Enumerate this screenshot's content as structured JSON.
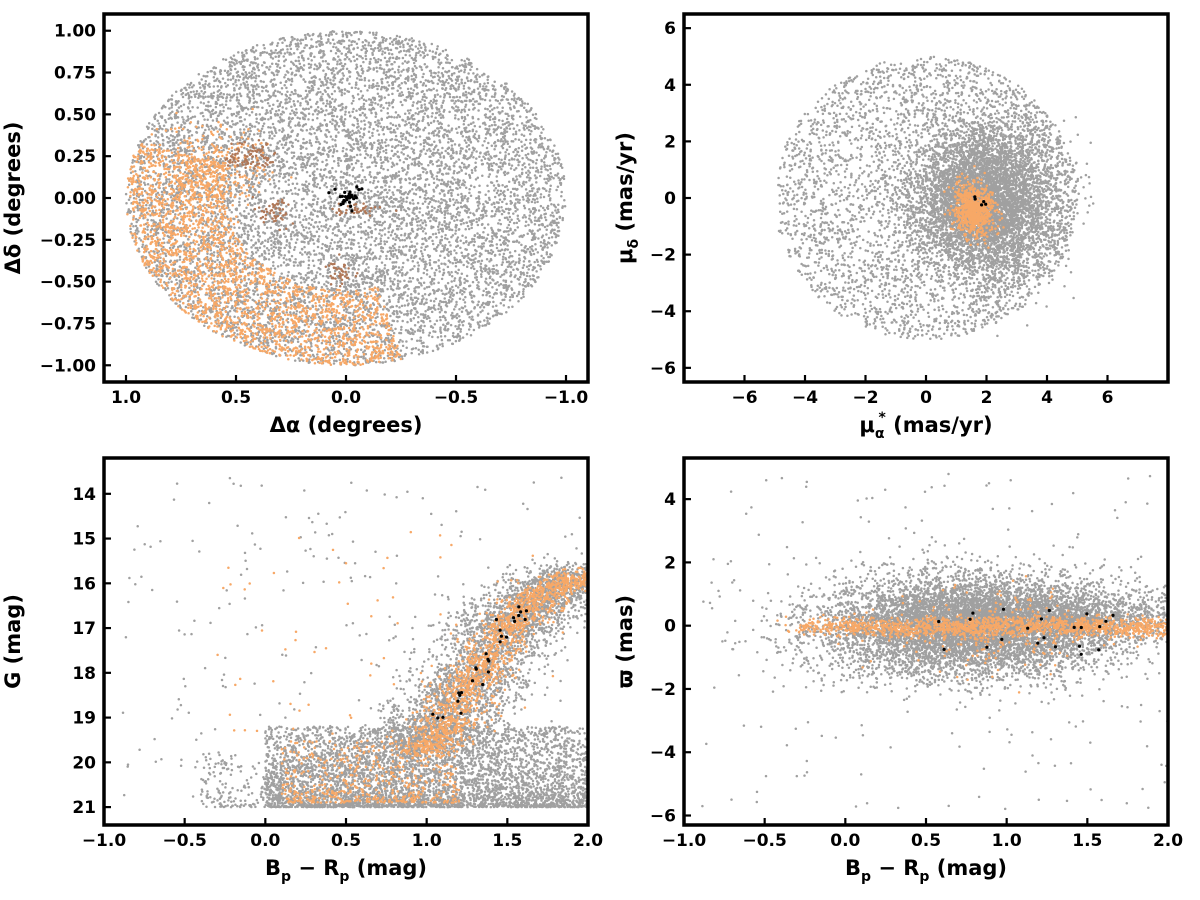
{
  "colors": {
    "field": "#a0a0a0",
    "members": "#f7a867",
    "highlight": "#000000",
    "members_dark": "#b07858"
  },
  "chart_data": [
    {
      "id": "sky",
      "type": "scatter",
      "xlabel": {
        "main": "Δα (degrees)",
        "sub": ""
      },
      "ylabel": {
        "main": "Δδ (degrees)",
        "sub": ""
      },
      "xlim": [
        1.1,
        -1.1
      ],
      "ylim": [
        -1.1,
        1.1
      ],
      "x_reversed": true,
      "xticks": [
        1.0,
        0.5,
        0.0,
        -0.5,
        -1.0
      ],
      "xtick_labels": [
        "1.0",
        "0.5",
        "0.0",
        "−0.5",
        "−1.0"
      ],
      "yticks": [
        -1.0,
        -0.75,
        -0.5,
        -0.25,
        0.0,
        0.25,
        0.5,
        0.75,
        1.0
      ],
      "ytick_labels": [
        "−1.00",
        "−0.75",
        "−0.50",
        "−0.25",
        "0.00",
        "0.25",
        "0.50",
        "0.75",
        "1.00"
      ],
      "grid": false,
      "series": [
        {
          "role": "field",
          "shape": "disk",
          "center": [
            0.0,
            0.0
          ],
          "radius": [
            1.0,
            1.0
          ],
          "n": 9000
        },
        {
          "role": "members",
          "shape": "arc",
          "center": [
            0.0,
            0.0
          ],
          "r_range": [
            0.55,
            1.0
          ],
          "theta_deg": [
            160,
            285
          ],
          "n": 2200
        },
        {
          "role": "members",
          "shape": "blob",
          "center": [
            0.6,
            0.15
          ],
          "spread": [
            0.12,
            0.15
          ],
          "n": 300
        },
        {
          "role": "members_dark",
          "shape": "blob",
          "center": [
            0.45,
            0.25
          ],
          "spread": [
            0.06,
            0.05
          ],
          "n": 90
        },
        {
          "role": "members_dark",
          "shape": "blob",
          "center": [
            0.33,
            -0.08
          ],
          "spread": [
            0.04,
            0.04
          ],
          "n": 50
        },
        {
          "role": "members_dark",
          "shape": "blob",
          "center": [
            0.03,
            -0.45
          ],
          "spread": [
            0.04,
            0.04
          ],
          "n": 40
        },
        {
          "role": "members_dark",
          "shape": "blob",
          "center": [
            -0.05,
            -0.07
          ],
          "spread": [
            0.06,
            0.02
          ],
          "n": 40
        },
        {
          "role": "highlight",
          "shape": "blob",
          "center": [
            0.0,
            0.0
          ],
          "spread": [
            0.03,
            0.03
          ],
          "n": 30
        }
      ]
    },
    {
      "id": "proper-motion",
      "type": "scatter",
      "xlabel": {
        "main": "μ",
        "sub": "α",
        "sup": "*",
        "after": "  (mas/yr)"
      },
      "ylabel": {
        "main": "μ",
        "sub": "δ",
        "after": " (mas/yr)"
      },
      "xlim": [
        -8,
        8
      ],
      "ylim": [
        -6.5,
        6.5
      ],
      "x_reversed": false,
      "xticks": [
        -6,
        -4,
        -2,
        0,
        2,
        4,
        6
      ],
      "xtick_labels": [
        "−6",
        "−4",
        "−2",
        "0",
        "2",
        "4",
        "6"
      ],
      "yticks": [
        -6,
        -4,
        -2,
        0,
        2,
        4,
        6
      ],
      "ytick_labels": [
        "−6",
        "−4",
        "−2",
        "0",
        "2",
        "4",
        "6"
      ],
      "grid": false,
      "series": [
        {
          "role": "field",
          "shape": "blob",
          "center": [
            1.9,
            -0.1
          ],
          "spread": [
            1.1,
            1.2
          ],
          "n": 5000
        },
        {
          "role": "field",
          "shape": "disk",
          "center": [
            0.0,
            0.0
          ],
          "radius": [
            5.0,
            5.0
          ],
          "n": 3500
        },
        {
          "role": "field",
          "shape": "arc",
          "center": [
            0.0,
            0.0
          ],
          "r_range": [
            2.0,
            5.0
          ],
          "theta_deg": [
            120,
            245
          ],
          "n": 500
        },
        {
          "role": "members",
          "shape": "blob",
          "center": [
            1.6,
            -0.4
          ],
          "spread": [
            0.35,
            0.45
          ],
          "n": 700
        },
        {
          "role": "highlight",
          "shape": "blob",
          "center": [
            1.7,
            -0.1
          ],
          "spread": [
            0.2,
            0.15
          ],
          "n": 5
        }
      ]
    },
    {
      "id": "cmd",
      "type": "scatter",
      "xlabel": {
        "main": "B",
        "sub": "p",
        "after": " − R",
        "sub2": "p",
        "after2": " (mag)"
      },
      "ylabel": {
        "main": "G (mag)",
        "sub": ""
      },
      "xlim": [
        -1.0,
        2.0
      ],
      "ylim": [
        21.4,
        13.2
      ],
      "y_reversed": true,
      "xticks": [
        -1.0,
        -0.5,
        0.0,
        0.5,
        1.0,
        1.5,
        2.0
      ],
      "xtick_labels": [
        "−1.0",
        "−0.5",
        "0.0",
        "0.5",
        "1.0",
        "1.5",
        "2.0"
      ],
      "yticks": [
        14,
        15,
        16,
        17,
        18,
        19,
        20,
        21
      ],
      "ytick_labels": [
        "14",
        "15",
        "16",
        "17",
        "18",
        "19",
        "20",
        "21"
      ],
      "grid": false,
      "series": [
        {
          "role": "field",
          "shape": "band",
          "x_range": [
            0.0,
            2.0
          ],
          "y_range": [
            19.2,
            21.0
          ],
          "n": 4000
        },
        {
          "role": "field",
          "shape": "track",
          "points": [
            [
              0.9,
              19.8
            ],
            [
              1.1,
              19.0
            ],
            [
              1.3,
              18.0
            ],
            [
              1.5,
              17.0
            ],
            [
              1.7,
              16.3
            ],
            [
              2.0,
              15.7
            ]
          ],
          "width": [
            0.18,
            0.35
          ],
          "n": 3500
        },
        {
          "role": "field",
          "shape": "band",
          "x_range": [
            -0.4,
            0.9
          ],
          "y_range": [
            19.8,
            21.0
          ],
          "n": 400
        },
        {
          "role": "field",
          "shape": "scatter",
          "x_range": [
            -0.9,
            2.0
          ],
          "y_range": [
            13.6,
            21.0
          ],
          "n": 250
        },
        {
          "role": "members",
          "shape": "band",
          "x_range": [
            0.1,
            1.2
          ],
          "y_range": [
            19.5,
            20.9
          ],
          "n": 500
        },
        {
          "role": "members",
          "shape": "track",
          "points": [
            [
              1.0,
              19.8
            ],
            [
              1.15,
              19.0
            ],
            [
              1.3,
              18.0
            ],
            [
              1.5,
              17.0
            ],
            [
              1.7,
              16.3
            ],
            [
              1.95,
              15.8
            ]
          ],
          "width": [
            0.1,
            0.15
          ],
          "n": 1500
        },
        {
          "role": "members",
          "shape": "scatter",
          "x_range": [
            -0.3,
            1.8
          ],
          "y_range": [
            14.8,
            19.5
          ],
          "n": 60
        },
        {
          "role": "highlight",
          "shape": "track",
          "points": [
            [
              1.05,
              19.1
            ],
            [
              1.3,
              18.0
            ],
            [
              1.5,
              17.1
            ],
            [
              1.7,
              16.2
            ]
          ],
          "width": [
            0.05,
            0.3
          ],
          "n": 28
        }
      ]
    },
    {
      "id": "parallax",
      "type": "scatter",
      "xlabel": {
        "main": "B",
        "sub": "p",
        "after": " − R",
        "sub2": "p",
        "after2": " (mag)"
      },
      "ylabel": {
        "main": "ϖ (mas)",
        "sub": ""
      },
      "xlim": [
        -1.0,
        2.0
      ],
      "ylim": [
        -6.3,
        5.3
      ],
      "x_reversed": false,
      "xticks": [
        -1.0,
        -0.5,
        0.0,
        0.5,
        1.0,
        1.5,
        2.0
      ],
      "xtick_labels": [
        "−1.0",
        "−0.5",
        "0.0",
        "0.5",
        "1.0",
        "1.5",
        "2.0"
      ],
      "yticks": [
        -6,
        -4,
        -2,
        0,
        2,
        4
      ],
      "ytick_labels": [
        "−6",
        "−4",
        "−2",
        "0",
        "2",
        "4"
      ],
      "grid": false,
      "series": [
        {
          "role": "field",
          "shape": "blob",
          "center": [
            0.75,
            0.0
          ],
          "spread": [
            0.45,
            0.8
          ],
          "n": 7000
        },
        {
          "role": "field",
          "shape": "blob",
          "center": [
            1.4,
            0.2
          ],
          "spread": [
            0.4,
            0.45
          ],
          "n": 1500
        },
        {
          "role": "field",
          "shape": "scatter",
          "x_range": [
            -0.9,
            2.0
          ],
          "y_range": [
            -5.8,
            4.8
          ],
          "n": 200
        },
        {
          "role": "members",
          "shape": "track",
          "points": [
            [
              -0.2,
              0.0
            ],
            [
              0.4,
              -0.1
            ],
            [
              1.0,
              0.0
            ],
            [
              1.5,
              -0.05
            ],
            [
              2.0,
              -0.05
            ]
          ],
          "width": [
            0.15,
            0.3
          ],
          "n": 1300
        },
        {
          "role": "members",
          "shape": "blob",
          "center": [
            0.9,
            -0.2
          ],
          "spread": [
            0.35,
            0.6
          ],
          "n": 250
        },
        {
          "role": "highlight",
          "shape": "scatter",
          "x_range": [
            0.5,
            1.8
          ],
          "y_range": [
            -1.0,
            0.6
          ],
          "n": 22
        }
      ]
    }
  ]
}
